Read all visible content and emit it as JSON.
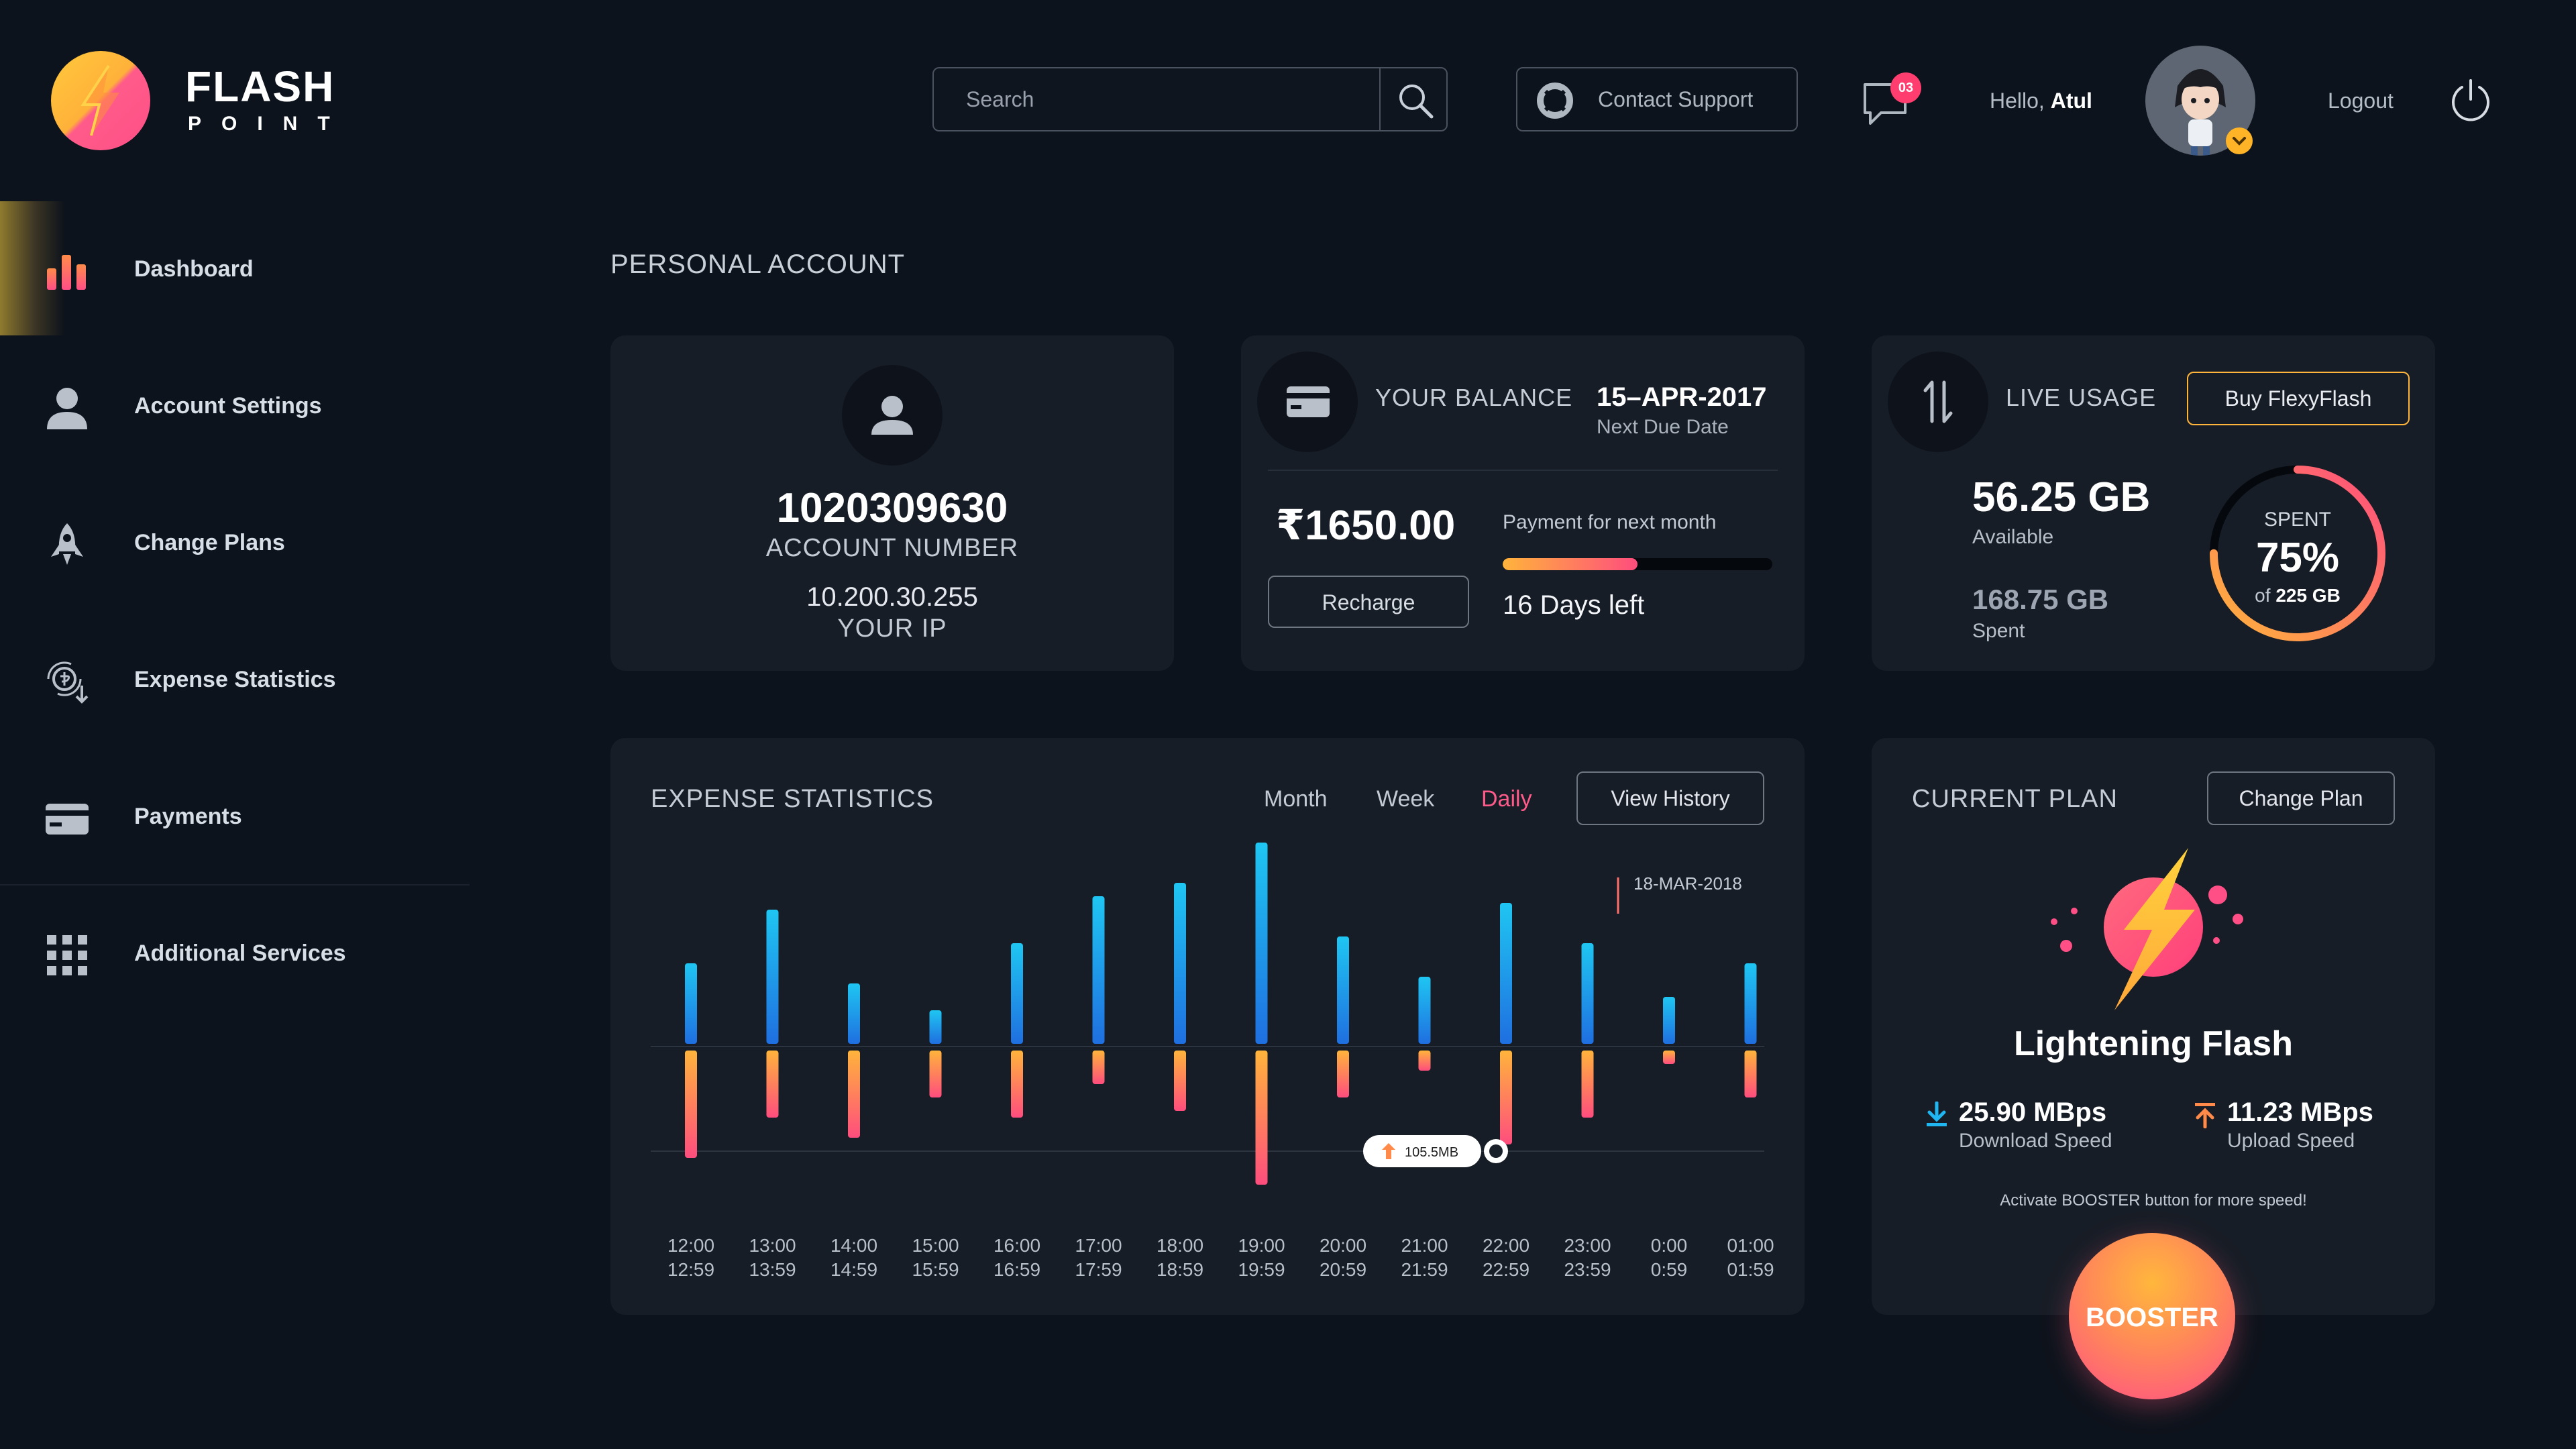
{
  "brand": {
    "title": "FLASH",
    "subtitle": "POINT"
  },
  "header": {
    "search_placeholder": "Search",
    "support_label": "Contact Support",
    "notifications_count": "03",
    "greeting": "Hello,",
    "user_name": "Atul",
    "logout_label": "Logout"
  },
  "sidebar": {
    "items": [
      {
        "label": "Dashboard",
        "icon": "bar-chart-icon",
        "active": true
      },
      {
        "label": "Account Settings",
        "icon": "user-icon"
      },
      {
        "label": "Change Plans",
        "icon": "rocket-icon"
      },
      {
        "label": "Expense Statistics",
        "icon": "money-exchange-icon"
      },
      {
        "label": "Payments",
        "icon": "credit-card-icon"
      },
      {
        "label": "Additional Services",
        "icon": "grid-icon"
      }
    ]
  },
  "main": {
    "section_title": "PERSONAL ACCOUNT"
  },
  "account": {
    "number": "1020309630",
    "number_label": "ACCOUNT NUMBER",
    "ip": "10.200.30.255",
    "ip_label": "YOUR IP"
  },
  "balance": {
    "title": "YOUR BALANCE",
    "due_date": "15–APR-2017",
    "due_label": "Next Due Date",
    "amount": "₹1650.00",
    "payment_label": "Payment for next month",
    "progress": 0.5,
    "recharge_label": "Recharge",
    "days_left": "16 Days left"
  },
  "live_usage": {
    "title": "LIVE USAGE",
    "buy_label": "Buy FlexyFlash",
    "available": "56.25 GB",
    "available_label": "Available",
    "spent": "168.75 GB",
    "spent_label": "Spent",
    "donut_label": "SPENT",
    "percent": "75%",
    "percent_value": 0.75,
    "of_prefix": "of",
    "total": "225 GB"
  },
  "expense": {
    "title": "EXPENSE STATISTICS",
    "tabs": [
      "Month",
      "Week",
      "Daily"
    ],
    "active_tab": "Daily",
    "history_label": "View History",
    "marker_date": "18-MAR-2018",
    "tooltip": "105.5MB"
  },
  "chart_data": {
    "type": "bar",
    "categories": [
      [
        "12:00",
        "12:59"
      ],
      [
        "13:00",
        "13:59"
      ],
      [
        "14:00",
        "14:59"
      ],
      [
        "15:00",
        "15:59"
      ],
      [
        "16:00",
        "16:59"
      ],
      [
        "17:00",
        "17:59"
      ],
      [
        "18:00",
        "18:59"
      ],
      [
        "19:00",
        "19:59"
      ],
      [
        "20:00",
        "20:59"
      ],
      [
        "21:00",
        "21:59"
      ],
      [
        "22:00",
        "22:59"
      ],
      [
        "23:00",
        "23:59"
      ],
      [
        "0:00",
        "0:59"
      ],
      [
        "01:00",
        "01:59"
      ]
    ],
    "series": [
      {
        "values": [
          48,
          80,
          36,
          20,
          60,
          88,
          96,
          120,
          64,
          40,
          84,
          60,
          28,
          48
        ],
        "color_from": "#1fc6f2",
        "color_to": "#1f6fe0"
      },
      {
        "values": [
          64,
          40,
          52,
          28,
          40,
          20,
          36,
          80,
          28,
          12,
          56,
          40,
          8,
          28
        ],
        "color_from": "#ffb43b",
        "color_to": "#ff4d7e"
      }
    ],
    "ylim": [
      0,
      120
    ]
  },
  "plan": {
    "title": "CURRENT PLAN",
    "change_label": "Change Plan",
    "name": "Lightening Flash",
    "download": "25.90 MBps",
    "download_label": "Download Speed",
    "upload": "11.23 MBps",
    "upload_label": "Upload Speed",
    "note": "Activate BOOSTER button for more speed!",
    "booster_label": "BOOSTER"
  },
  "colors": {
    "background": "#0d131c",
    "card": "#171d26",
    "accent_pink": "#ff4f86",
    "accent_orange": "#ffb43b",
    "accent_blue": "#1fc6f2"
  }
}
